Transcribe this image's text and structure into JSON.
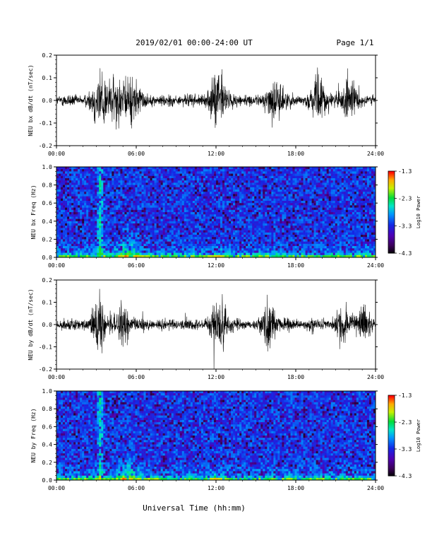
{
  "header": {
    "title": "2019/02/01  00:00-24:00 UT",
    "page": "Page 1/1"
  },
  "x_axis": {
    "label": "Universal Time (hh:mm)",
    "ticks": [
      "00:00",
      "06:00",
      "12:00",
      "18:00",
      "24:00"
    ]
  },
  "colorbar": {
    "label": "Log10 Power",
    "ticks": [
      "-1.3",
      "-2.3",
      "-3.3",
      "-4.3"
    ]
  },
  "chart_data": [
    {
      "type": "line",
      "ylabel": "NEU bx dB/dt (nT/sec)",
      "ylim": [
        -0.2,
        0.2
      ],
      "yticks": [
        "0.2",
        "0.1",
        "0.0",
        "-0.1",
        "-0.2"
      ],
      "xlim_hours": [
        0,
        24
      ],
      "activity_bursts": [
        {
          "center_h": 3.3,
          "amplitude": 0.2
        },
        {
          "center_h": 4.5,
          "amplitude": 0.13
        },
        {
          "center_h": 5.7,
          "amplitude": 0.15
        },
        {
          "center_h": 12.2,
          "amplitude": 0.2
        },
        {
          "center_h": 16.5,
          "amplitude": 0.12
        },
        {
          "center_h": 19.8,
          "amplitude": 0.13
        },
        {
          "center_h": 22.0,
          "amplitude": 0.12
        }
      ]
    },
    {
      "type": "heatmap",
      "ylabel": "NEU bx Freq (Hz)",
      "ylim": [
        0.0,
        1.0
      ],
      "yticks": [
        "1.0",
        "0.8",
        "0.6",
        "0.4",
        "0.2",
        "0.0"
      ],
      "xlim_hours": [
        0,
        24
      ],
      "clim_log10": [
        -4.3,
        -1.3
      ]
    },
    {
      "type": "line",
      "ylabel": "NEU by dB/dt (nT/sec)",
      "ylim": [
        -0.2,
        0.2
      ],
      "yticks": [
        "0.2",
        "0.1",
        "0.0",
        "-0.1",
        "-0.2"
      ],
      "xlim_hours": [
        0,
        24
      ],
      "activity_bursts": [
        {
          "center_h": 3.3,
          "amplitude": 0.15
        },
        {
          "center_h": 5.0,
          "amplitude": 0.1
        },
        {
          "center_h": 12.3,
          "amplitude": 0.2
        },
        {
          "center_h": 16.0,
          "amplitude": 0.12
        },
        {
          "center_h": 21.5,
          "amplitude": 0.1
        },
        {
          "center_h": 23.0,
          "amplitude": 0.08
        }
      ]
    },
    {
      "type": "heatmap",
      "ylabel": "NEU by Freq (Hz)",
      "ylim": [
        0.0,
        1.0
      ],
      "yticks": [
        "1.0",
        "0.8",
        "0.6",
        "0.4",
        "0.2",
        "0.0"
      ],
      "xlim_hours": [
        0,
        24
      ],
      "clim_log10": [
        -4.3,
        -1.3
      ]
    }
  ]
}
